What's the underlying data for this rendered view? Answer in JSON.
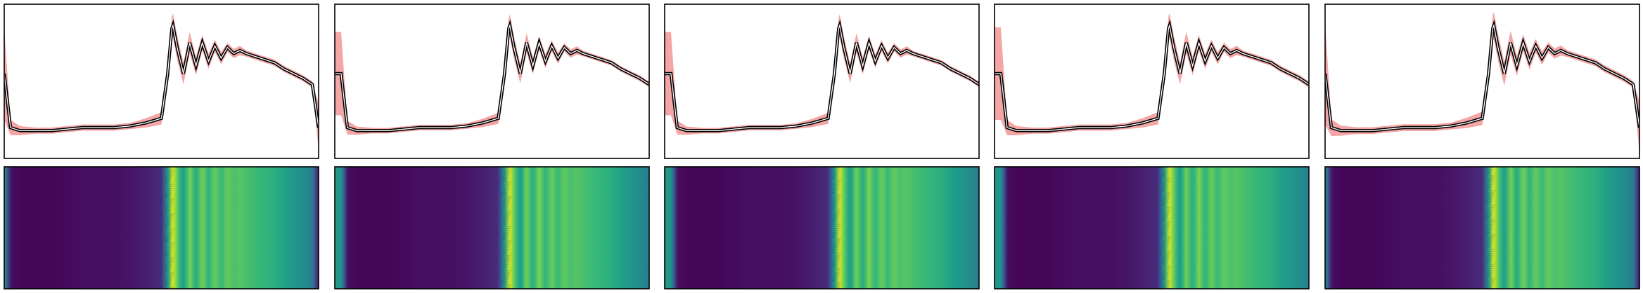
{
  "chart_data": {
    "type": "line",
    "description_free": true,
    "x_domain": [
      0,
      1
    ],
    "y_domain": [
      0,
      1
    ],
    "ticks": "none",
    "grid": false,
    "legend": "none",
    "colors": {
      "mean_line": "#000000",
      "mean_halo": "#ffffff",
      "band": "#f4a6a6",
      "frame": "#000000",
      "heatmap_low": "#440154",
      "heatmap_high": "#fde725"
    },
    "mean_profile": {
      "x": [
        0.0,
        0.02,
        0.05,
        0.1,
        0.15,
        0.2,
        0.25,
        0.3,
        0.35,
        0.4,
        0.45,
        0.5,
        0.52,
        0.535,
        0.55,
        0.57,
        0.59,
        0.61,
        0.63,
        0.65,
        0.67,
        0.69,
        0.71,
        0.73,
        0.75,
        0.77,
        0.8,
        0.83,
        0.86,
        0.89,
        0.92,
        0.95,
        0.98,
        1.0
      ],
      "y": [
        0.55,
        0.2,
        0.18,
        0.18,
        0.18,
        0.19,
        0.2,
        0.2,
        0.2,
        0.21,
        0.23,
        0.26,
        0.55,
        0.88,
        0.72,
        0.55,
        0.75,
        0.6,
        0.75,
        0.63,
        0.73,
        0.65,
        0.72,
        0.68,
        0.7,
        0.68,
        0.66,
        0.64,
        0.62,
        0.58,
        0.55,
        0.52,
        0.48,
        0.2
      ]
    },
    "band_spread": [
      0.3,
      0.05,
      0.03,
      0.02,
      0.02,
      0.02,
      0.02,
      0.02,
      0.02,
      0.02,
      0.03,
      0.04,
      0.06,
      0.08,
      0.08,
      0.07,
      0.07,
      0.06,
      0.05,
      0.05,
      0.04,
      0.04,
      0.03,
      0.03,
      0.03,
      0.02,
      0.02,
      0.02,
      0.02,
      0.02,
      0.02,
      0.02,
      0.02,
      0.15
    ],
    "panels": [
      {
        "id": "p1",
        "shift": 0.0,
        "band_scale": 1.0,
        "edge_x": 0.53
      },
      {
        "id": "p2",
        "shift": 0.02,
        "band_scale": 0.9,
        "edge_x": 0.55
      },
      {
        "id": "p3",
        "shift": 0.02,
        "band_scale": 0.9,
        "edge_x": 0.55
      },
      {
        "id": "p4",
        "shift": 0.02,
        "band_scale": 1.0,
        "edge_x": 0.55
      },
      {
        "id": "p5",
        "shift": 0.0,
        "band_scale": 1.1,
        "edge_x": 0.53
      }
    ]
  }
}
